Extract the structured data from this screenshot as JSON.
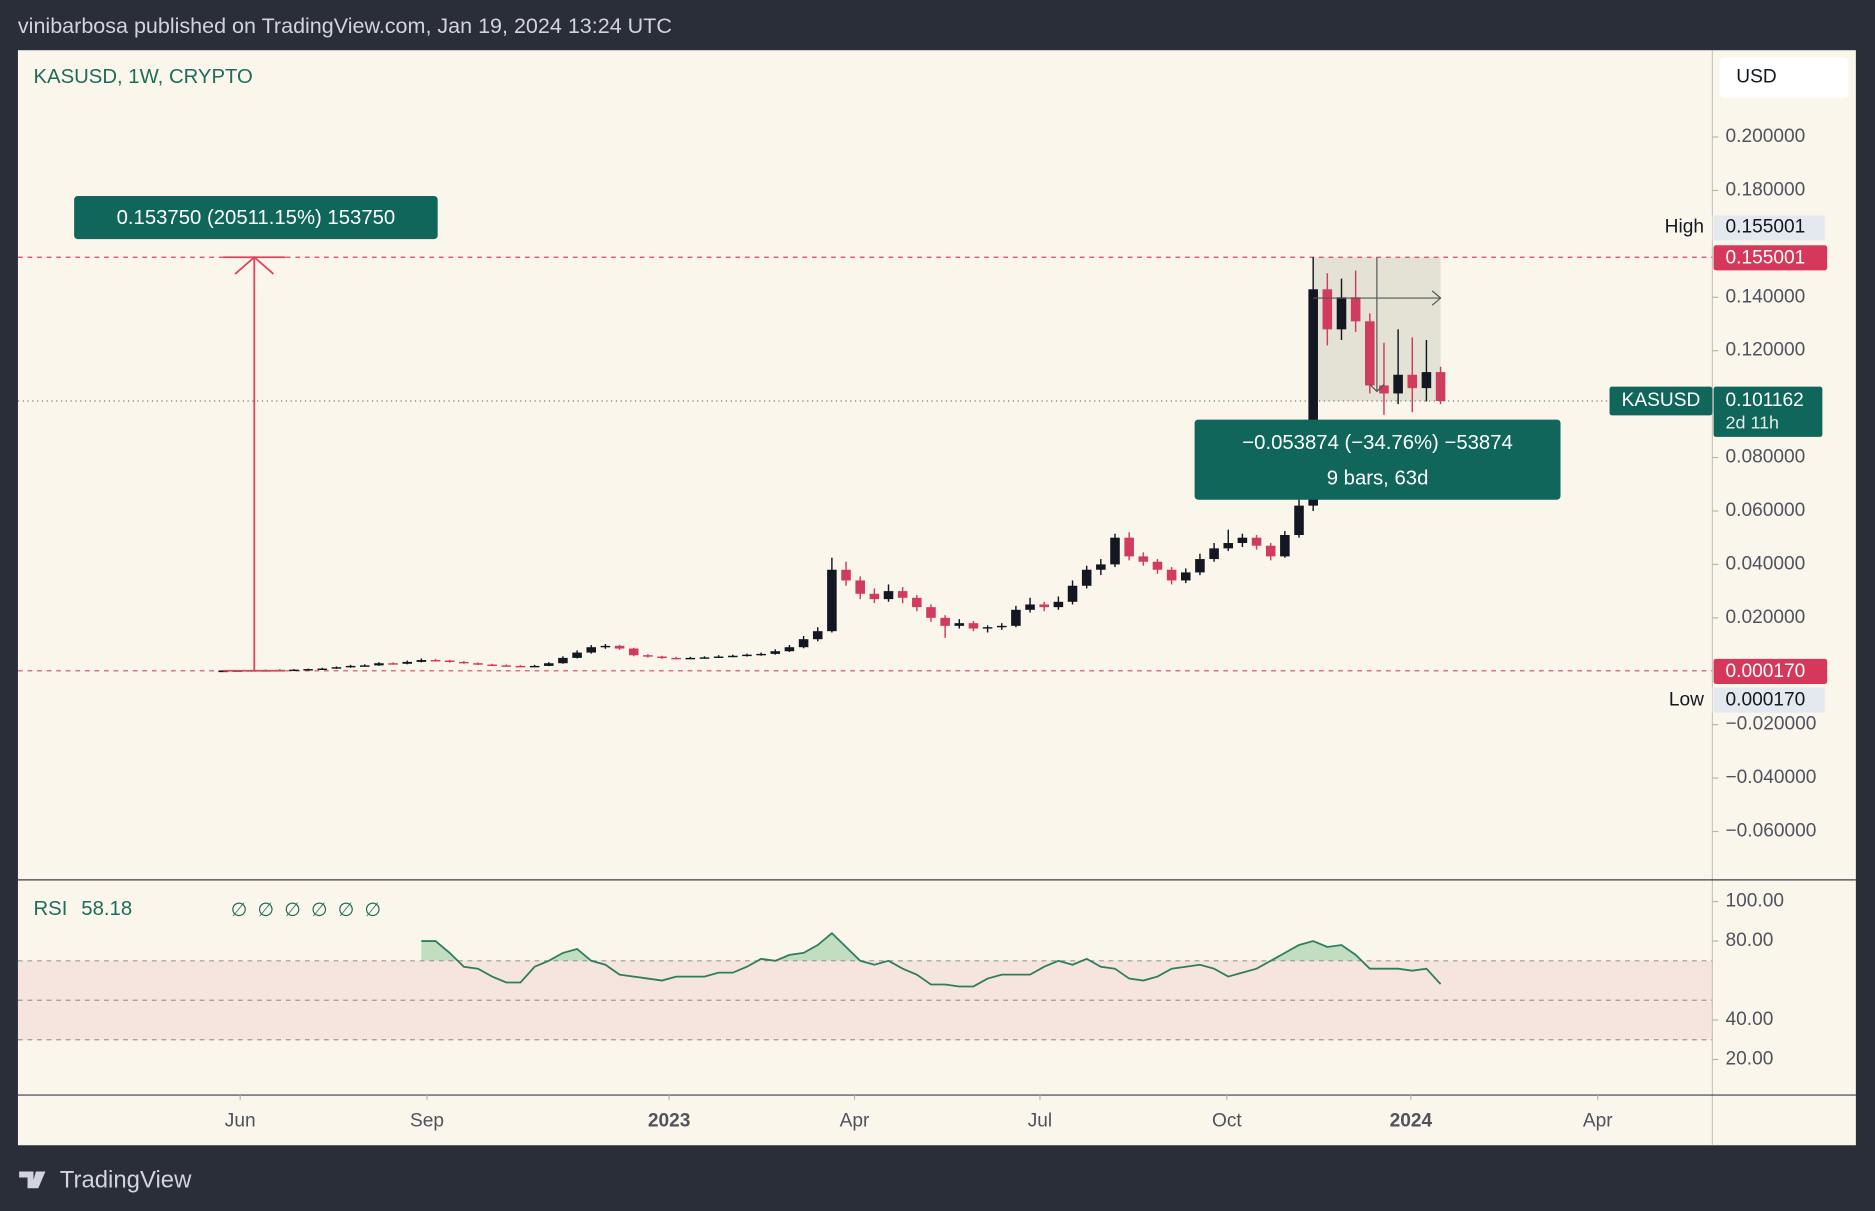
{
  "header": {
    "text": "vinibarbosa published on TradingView.com, Jan 19, 2024 13:24 UTC"
  },
  "footer": {
    "brand": "TradingView"
  },
  "chart_data": {
    "type": "candlestick",
    "title": "KASUSD, 1W, CRYPTO",
    "currency": "USD",
    "up_color": "#131722",
    "down_color": "#d03b5e",
    "xlim": [
      -14.5,
      105.2
    ],
    "xticks": [
      {
        "value": 1.2,
        "label": "Jun"
      },
      {
        "value": 14.4,
        "label": "Sep"
      },
      {
        "value": 31.5,
        "label": "2023"
      },
      {
        "value": 44.6,
        "label": "Apr"
      },
      {
        "value": 57.7,
        "label": "Jul"
      },
      {
        "value": 70.9,
        "label": "Oct"
      },
      {
        "value": 83.9,
        "label": "2024"
      },
      {
        "value": 97.1,
        "label": "Apr"
      }
    ],
    "ylim": [
      -0.0781,
      0.2325
    ],
    "yticks": [
      {
        "value": 0.2,
        "label": "0.200000"
      },
      {
        "value": 0.18,
        "label": "0.180000"
      },
      {
        "value": 0.14,
        "label": "0.140000"
      },
      {
        "value": 0.12,
        "label": "0.120000"
      },
      {
        "value": 0.08,
        "label": "0.080000"
      },
      {
        "value": 0.06,
        "label": "0.060000"
      },
      {
        "value": 0.04,
        "label": "0.040000"
      },
      {
        "value": 0.02,
        "label": "0.020000"
      },
      {
        "value": -0.02,
        "label": "−0.020000"
      },
      {
        "value": -0.04,
        "label": "−0.040000"
      },
      {
        "value": -0.06,
        "label": "−0.060000"
      }
    ],
    "candles": [
      [
        0.00017,
        0.0003,
        0.00017,
        0.0002
      ],
      [
        0.0002,
        0.0004,
        0.0002,
        0.0003
      ],
      [
        0.0003,
        0.0005,
        0.0002,
        0.0004
      ],
      [
        0.0004,
        0.0006,
        0.0003,
        0.0004
      ],
      [
        0.0004,
        0.0007,
        0.0003,
        0.0005
      ],
      [
        0.0005,
        0.0008,
        0.0004,
        0.0006
      ],
      [
        0.0006,
        0.001,
        0.0005,
        0.0008
      ],
      [
        0.0008,
        0.0013,
        0.0007,
        0.001
      ],
      [
        0.001,
        0.0018,
        0.0009,
        0.0015
      ],
      [
        0.0015,
        0.0024,
        0.0013,
        0.002
      ],
      [
        0.002,
        0.0026,
        0.0017,
        0.0022
      ],
      [
        0.0022,
        0.0034,
        0.002,
        0.003
      ],
      [
        0.003,
        0.0033,
        0.0025,
        0.0028
      ],
      [
        0.0028,
        0.004,
        0.0026,
        0.0035
      ],
      [
        0.0035,
        0.0048,
        0.0033,
        0.0042
      ],
      [
        0.0042,
        0.0046,
        0.0037,
        0.004
      ],
      [
        0.004,
        0.0043,
        0.0032,
        0.0035
      ],
      [
        0.0035,
        0.0038,
        0.0028,
        0.003
      ],
      [
        0.003,
        0.0033,
        0.0023,
        0.0025
      ],
      [
        0.0025,
        0.0028,
        0.002,
        0.0022
      ],
      [
        0.0022,
        0.0025,
        0.0018,
        0.002
      ],
      [
        0.002,
        0.0023,
        0.0016,
        0.0018
      ],
      [
        0.0018,
        0.0024,
        0.0017,
        0.002
      ],
      [
        0.002,
        0.0034,
        0.0019,
        0.003
      ],
      [
        0.003,
        0.0056,
        0.0028,
        0.005
      ],
      [
        0.005,
        0.0078,
        0.0048,
        0.007
      ],
      [
        0.007,
        0.0098,
        0.0066,
        0.009
      ],
      [
        0.009,
        0.0102,
        0.0084,
        0.0095
      ],
      [
        0.0095,
        0.0099,
        0.008,
        0.0085
      ],
      [
        0.0085,
        0.0088,
        0.0056,
        0.006
      ],
      [
        0.006,
        0.0064,
        0.0051,
        0.0055
      ],
      [
        0.0055,
        0.0058,
        0.0046,
        0.005
      ],
      [
        0.005,
        0.0054,
        0.0044,
        0.0048
      ],
      [
        0.0048,
        0.0054,
        0.0046,
        0.005
      ],
      [
        0.005,
        0.0056,
        0.0047,
        0.0052
      ],
      [
        0.0052,
        0.006,
        0.005,
        0.0055
      ],
      [
        0.0055,
        0.0062,
        0.0052,
        0.0058
      ],
      [
        0.0058,
        0.0066,
        0.0055,
        0.0062
      ],
      [
        0.0062,
        0.007,
        0.0058,
        0.0065
      ],
      [
        0.0065,
        0.0082,
        0.0062,
        0.0075
      ],
      [
        0.0075,
        0.0098,
        0.0072,
        0.009
      ],
      [
        0.009,
        0.0132,
        0.0086,
        0.012
      ],
      [
        0.012,
        0.0165,
        0.0112,
        0.015
      ],
      [
        0.015,
        0.0425,
        0.0145,
        0.038
      ],
      [
        0.038,
        0.041,
        0.032,
        0.034
      ],
      [
        0.034,
        0.0355,
        0.027,
        0.029
      ],
      [
        0.029,
        0.031,
        0.0255,
        0.027
      ],
      [
        0.027,
        0.0325,
        0.026,
        0.03
      ],
      [
        0.03,
        0.0315,
        0.0255,
        0.0275
      ],
      [
        0.0275,
        0.0285,
        0.0225,
        0.024
      ],
      [
        0.024,
        0.025,
        0.0185,
        0.02
      ],
      [
        0.02,
        0.021,
        0.0125,
        0.017
      ],
      [
        0.017,
        0.0195,
        0.016,
        0.018
      ],
      [
        0.018,
        0.0188,
        0.015,
        0.016
      ],
      [
        0.016,
        0.0172,
        0.0145,
        0.0165
      ],
      [
        0.0165,
        0.018,
        0.0155,
        0.017
      ],
      [
        0.017,
        0.0245,
        0.0165,
        0.023
      ],
      [
        0.023,
        0.0275,
        0.022,
        0.025
      ],
      [
        0.025,
        0.026,
        0.0225,
        0.024
      ],
      [
        0.024,
        0.028,
        0.023,
        0.026
      ],
      [
        0.026,
        0.034,
        0.025,
        0.032
      ],
      [
        0.032,
        0.0395,
        0.031,
        0.038
      ],
      [
        0.038,
        0.042,
        0.036,
        0.04
      ],
      [
        0.04,
        0.0515,
        0.039,
        0.05
      ],
      [
        0.05,
        0.052,
        0.0415,
        0.043
      ],
      [
        0.043,
        0.0445,
        0.0395,
        0.041
      ],
      [
        0.041,
        0.042,
        0.0365,
        0.038
      ],
      [
        0.038,
        0.039,
        0.0325,
        0.034
      ],
      [
        0.034,
        0.0385,
        0.033,
        0.037
      ],
      [
        0.037,
        0.044,
        0.036,
        0.042
      ],
      [
        0.042,
        0.048,
        0.041,
        0.046
      ],
      [
        0.046,
        0.053,
        0.045,
        0.048
      ],
      [
        0.048,
        0.0515,
        0.0465,
        0.05
      ],
      [
        0.05,
        0.051,
        0.0455,
        0.047
      ],
      [
        0.047,
        0.048,
        0.0415,
        0.043
      ],
      [
        0.043,
        0.0525,
        0.0425,
        0.051
      ],
      [
        0.051,
        0.065,
        0.05,
        0.062
      ],
      [
        0.062,
        0.155001,
        0.06,
        0.143
      ],
      [
        0.143,
        0.149,
        0.122,
        0.128
      ],
      [
        0.128,
        0.147,
        0.124,
        0.14
      ],
      [
        0.14,
        0.15,
        0.127,
        0.131
      ],
      [
        0.131,
        0.134,
        0.104,
        0.107
      ],
      [
        0.107,
        0.123,
        0.096,
        0.104
      ],
      [
        0.104,
        0.128,
        0.1,
        0.111
      ],
      [
        0.111,
        0.125,
        0.097,
        0.106
      ],
      [
        0.106,
        0.124,
        0.101,
        0.112
      ],
      [
        0.112,
        0.114,
        0.1,
        0.101162
      ]
    ],
    "high": {
      "label": "High",
      "value": 0.155001,
      "value_label": "0.155001"
    },
    "low": {
      "label": "Low",
      "value": 0.00017,
      "value_label": "0.000170"
    },
    "last": {
      "name": "KASUSD",
      "value_label": "0.101162",
      "countdown": "2d 11h"
    },
    "measure_range": {
      "text": "0.153750 (20511.15%) 153750"
    },
    "measure_drop": {
      "text": "−0.053874 (−34.76%) −53874",
      "bars": "9 bars, 63d"
    },
    "rsi": {
      "name": "RSI",
      "symbols": "∅ ∅ ∅ ∅ ∅ ∅",
      "color": "#2e7d5f",
      "ylim": [
        2,
        111
      ],
      "yticks": [
        {
          "value": 100,
          "label": "100.00"
        },
        {
          "value": 80,
          "label": "80.00"
        },
        {
          "value": 40,
          "label": "40.00"
        },
        {
          "value": 20,
          "label": "20.00"
        }
      ],
      "levels": [
        70,
        50,
        30
      ],
      "values": [
        null,
        null,
        null,
        null,
        null,
        null,
        null,
        null,
        null,
        null,
        null,
        null,
        null,
        null,
        80,
        80,
        74,
        67,
        66,
        62,
        59,
        59,
        67,
        70,
        74,
        76,
        70,
        68,
        63,
        62,
        61,
        60,
        62,
        62,
        62,
        64,
        64,
        67,
        71,
        70,
        73,
        74,
        78,
        84,
        77,
        70,
        68,
        70,
        66,
        63,
        58,
        58,
        57,
        57,
        61,
        63,
        63,
        63,
        67,
        70,
        68,
        71,
        67,
        66,
        61,
        60,
        62,
        66,
        67,
        68,
        66,
        62,
        64,
        66,
        70,
        74,
        78,
        80,
        77,
        78,
        73,
        66,
        66,
        66,
        65,
        66,
        58.18
      ]
    }
  }
}
